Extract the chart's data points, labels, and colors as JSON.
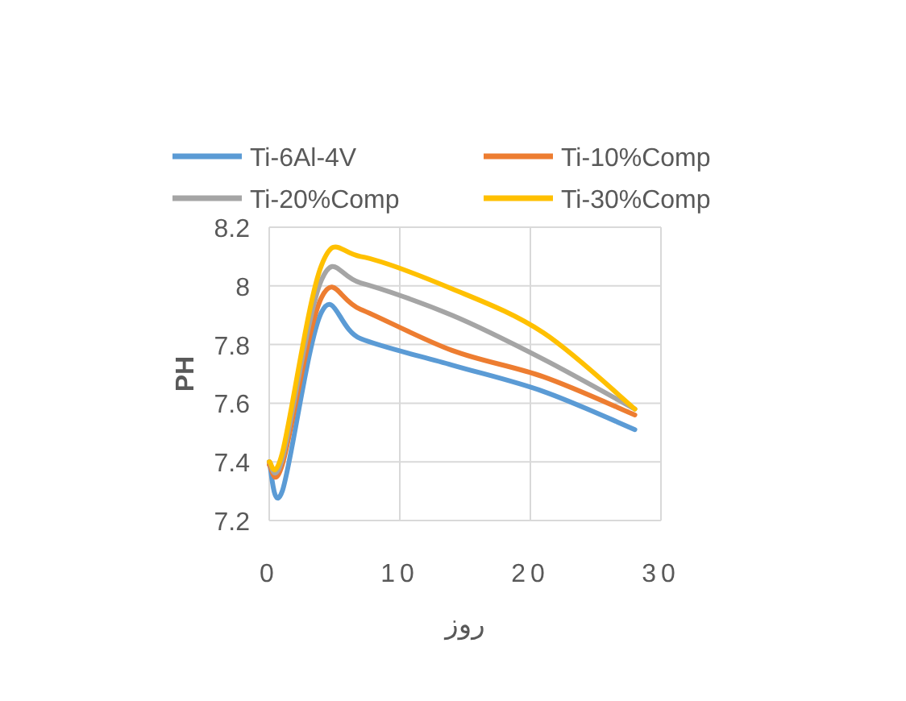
{
  "chart_data": {
    "type": "line",
    "xlabel": "روز",
    "ylabel": "PH",
    "x": [
      0,
      1,
      4,
      7,
      14,
      21,
      28
    ],
    "series": [
      {
        "name": "Ti-6Al-4V",
        "color": "#5b9bd5",
        "values": [
          7.4,
          7.3,
          7.91,
          7.82,
          7.73,
          7.64,
          7.51
        ]
      },
      {
        "name": "Ti-10%Comp",
        "color": "#ed7d31",
        "values": [
          7.39,
          7.39,
          7.96,
          7.92,
          7.78,
          7.69,
          7.56
        ]
      },
      {
        "name": "Ti-20%Comp",
        "color": "#a5a5a5",
        "values": [
          7.4,
          7.41,
          8.02,
          8.01,
          7.9,
          7.75,
          7.58
        ]
      },
      {
        "name": "Ti-30%Comp",
        "color": "#ffc000",
        "values": [
          7.4,
          7.43,
          8.07,
          8.1,
          7.99,
          7.84,
          7.58
        ]
      }
    ],
    "xlim": [
      0,
      30
    ],
    "xticks": [
      0,
      10,
      20,
      30
    ],
    "ylim": [
      7.2,
      8.2
    ],
    "yticks": [
      7.2,
      7.4,
      7.6,
      7.8,
      8,
      8.2
    ],
    "grid": true,
    "legend": "top",
    "marker": "none",
    "line_style": "solid"
  }
}
